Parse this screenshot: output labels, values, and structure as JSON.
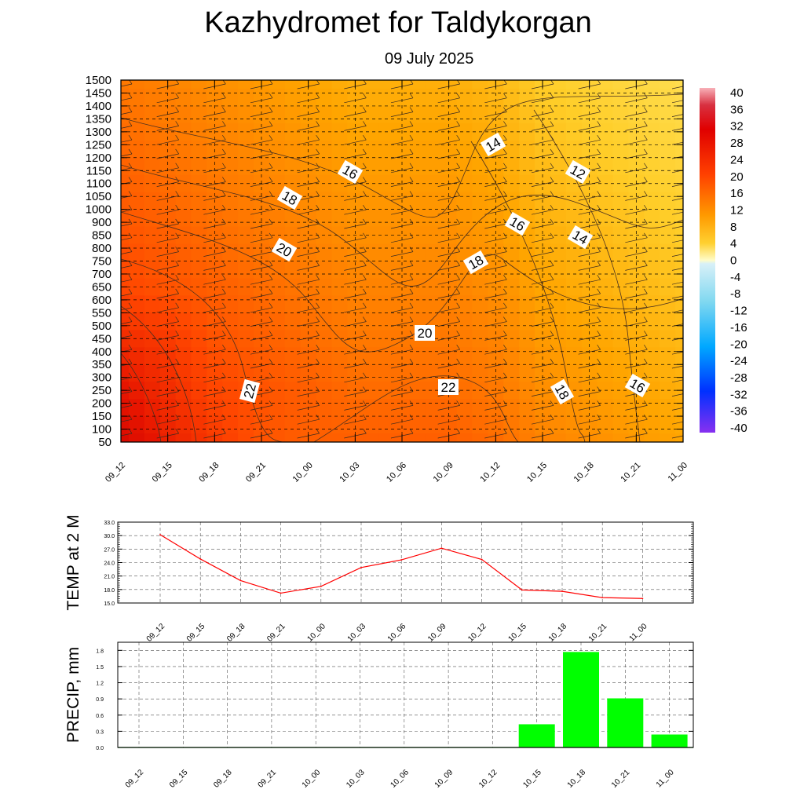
{
  "header": {
    "title": "Kazhydromet  for Taldykorgan",
    "subtitle": "09 July 2025"
  },
  "chart_data": [
    {
      "type": "heatmap",
      "title": "Kazhydromet  for Taldykorgan",
      "subtitle": "09 July 2025",
      "x_ticks": [
        "09_12",
        "09_15",
        "09_18",
        "09_21",
        "10_00",
        "10_03",
        "10_06",
        "10_09",
        "10_12",
        "10_15",
        "10_18",
        "10_21",
        "11_00"
      ],
      "y_ticks": [
        1500,
        1450,
        1400,
        1350,
        1300,
        1250,
        1200,
        1150,
        1100,
        1050,
        1000,
        900,
        850,
        800,
        750,
        700,
        650,
        600,
        550,
        500,
        450,
        400,
        350,
        300,
        250,
        200,
        150,
        100,
        50
      ],
      "colorbar_ticks": [
        40,
        36,
        32,
        28,
        24,
        20,
        16,
        12,
        8,
        4,
        0,
        -4,
        -8,
        -12,
        -16,
        -20,
        -24,
        -28,
        -32,
        -36,
        -40
      ],
      "contour_labels": [
        "14",
        "16",
        "12",
        "18",
        "16",
        "14",
        "20",
        "18",
        "20",
        "22",
        "22",
        "18",
        "16"
      ],
      "temperature_grid": [
        [
          20,
          19,
          18,
          17,
          16,
          15,
          15,
          15,
          14,
          12,
          11,
          10,
          9
        ],
        [
          21,
          20,
          19,
          18,
          17,
          16,
          16,
          16,
          15,
          13,
          12,
          11,
          10
        ],
        [
          22,
          21,
          20,
          19,
          18,
          17,
          17,
          17,
          16,
          14,
          13,
          12,
          11
        ],
        [
          23,
          22,
          21,
          20,
          19,
          18,
          18,
          18,
          17,
          15,
          14,
          13,
          12
        ],
        [
          24,
          23,
          22,
          21,
          20,
          19,
          19,
          19,
          18,
          16,
          15,
          14,
          13
        ],
        [
          26,
          25,
          23,
          22,
          21,
          20,
          20,
          20,
          19,
          17,
          16,
          15,
          14
        ],
        [
          28,
          26,
          24,
          23,
          22,
          21,
          21,
          21,
          20,
          18,
          17,
          16,
          15
        ],
        [
          30,
          27,
          25,
          23,
          22,
          22,
          22,
          22,
          21,
          19,
          18,
          17,
          16
        ]
      ],
      "grid": true
    },
    {
      "type": "line",
      "ylabel": "TEMP at 2 M",
      "categories": [
        "09_12",
        "09_15",
        "09_18",
        "09_21",
        "10_00",
        "10_03",
        "10_06",
        "10_09",
        "10_12",
        "10_15",
        "10_18",
        "10_21",
        "11_00"
      ],
      "values": [
        30.2,
        24.8,
        20.0,
        17.2,
        18.7,
        22.9,
        24.6,
        27.2,
        24.7,
        17.9,
        17.6,
        16.2,
        16.0
      ],
      "y_ticks": [
        "33.0",
        "30.0",
        "27.0",
        "24.0",
        "21.0",
        "18.0",
        "15.0"
      ],
      "ylim": [
        15,
        33
      ],
      "color": "#ff0000",
      "grid": true
    },
    {
      "type": "bar",
      "ylabel": "PRECIP, mm",
      "categories": [
        "09_12",
        "09_15",
        "09_18",
        "09_21",
        "10_00",
        "10_03",
        "10_06",
        "10_09",
        "10_12",
        "10_15",
        "10_18",
        "10_21",
        "11_00"
      ],
      "values": [
        0,
        0,
        0,
        0,
        0,
        0,
        0,
        0,
        0,
        0.43,
        1.77,
        0.91,
        0.24
      ],
      "y_ticks": [
        "1.8",
        "1.5",
        "1.2",
        "0.9",
        "0.6",
        "0.3",
        "0.0"
      ],
      "ylim": [
        0,
        1.95
      ],
      "color": "#00ff00",
      "grid": true
    }
  ]
}
